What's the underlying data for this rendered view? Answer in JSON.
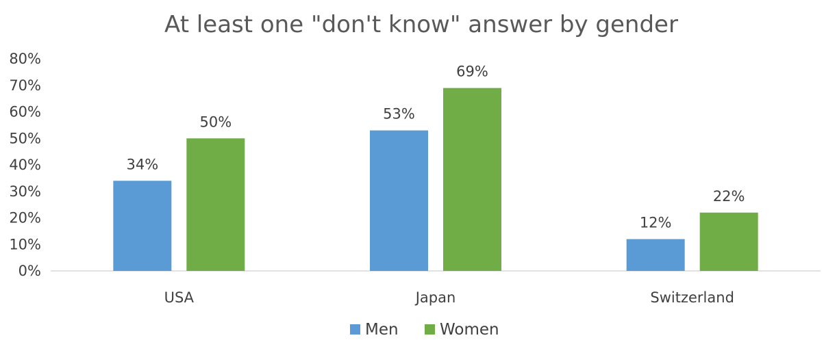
{
  "chart_data": {
    "type": "bar",
    "title": "At least one \"don't know\" answer by gender",
    "categories": [
      "USA",
      "Japan",
      "Switzerland"
    ],
    "series": [
      {
        "name": "Men",
        "values": [
          34,
          53,
          12
        ],
        "labels": [
          "34%",
          "53%",
          "12%"
        ],
        "color": "#5b9bd5"
      },
      {
        "name": "Women",
        "values": [
          50,
          69,
          22
        ],
        "labels": [
          "50%",
          "69%",
          "22%"
        ],
        "color": "#70ad47"
      }
    ],
    "ylim": [
      0,
      80
    ],
    "yticks": [
      {
        "value": 0,
        "label": "0%"
      },
      {
        "value": 10,
        "label": "10%"
      },
      {
        "value": 20,
        "label": "20%"
      },
      {
        "value": 30,
        "label": "30%"
      },
      {
        "value": 40,
        "label": "40%"
      },
      {
        "value": 50,
        "label": "50%"
      },
      {
        "value": 60,
        "label": "60%"
      },
      {
        "value": 70,
        "label": "70%"
      },
      {
        "value": 80,
        "label": "80%"
      }
    ],
    "grid": false,
    "legend": "bottom-center"
  }
}
